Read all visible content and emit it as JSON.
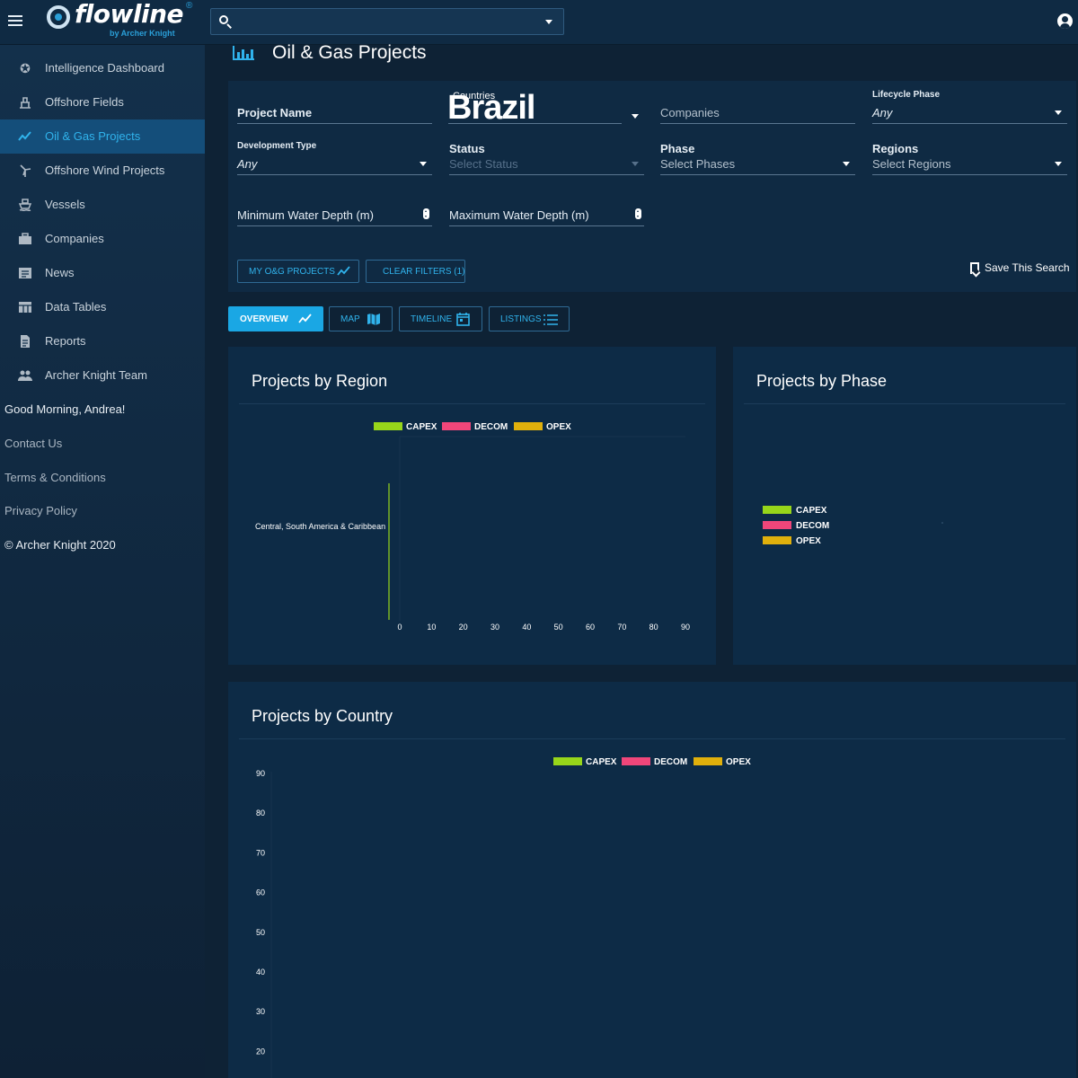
{
  "app": {
    "logo_text": "flowline",
    "logo_reg": "®",
    "logo_sub": "by Archer Knight"
  },
  "topbar": {
    "search_value": ""
  },
  "sidebar": {
    "items": [
      {
        "label": "Intelligence Dashboard",
        "icon": "star-badge-icon"
      },
      {
        "label": "Offshore Fields",
        "icon": "oil-rig-icon"
      },
      {
        "label": "Oil & Gas Projects",
        "icon": "trending-icon"
      },
      {
        "label": "Offshore Wind Projects",
        "icon": "wind-turbine-icon"
      },
      {
        "label": "Vessels",
        "icon": "ship-icon"
      },
      {
        "label": "Companies",
        "icon": "briefcase-icon"
      },
      {
        "label": "News",
        "icon": "news-icon"
      },
      {
        "label": "Data Tables",
        "icon": "table-icon"
      },
      {
        "label": "Reports",
        "icon": "report-icon"
      },
      {
        "label": "Archer Knight Team",
        "icon": "team-icon"
      }
    ],
    "greeting": "Good Morning, Andrea!",
    "contact": "Contact Us",
    "terms": "Terms & Conditions",
    "privacy": "Privacy Policy",
    "copyright": "© Archer Knight 2020"
  },
  "page": {
    "title": "Oil & Gas Projects"
  },
  "filters": {
    "project_name_label": "Project Name",
    "countries_label": "Countries",
    "countries_value": "Brazil",
    "companies_label": "Companies",
    "lifecycle_label": "Lifecycle Phase",
    "lifecycle_value": "Any",
    "devtype_label": "Development Type",
    "devtype_value": "Any",
    "status_label": "Status",
    "status_placeholder": "Select Status",
    "phase_label": "Phase",
    "phase_placeholder": "Select Phases",
    "regions_label": "Regions",
    "regions_placeholder": "Select Regions",
    "min_depth_label": "Minimum Water Depth (m)",
    "max_depth_label": "Maximum Water Depth (m)",
    "my_projects_btn": "MY O&G PROJECTS",
    "clear_filters_btn": "CLEAR FILTERS (1)",
    "save_search": "Save This Search"
  },
  "tabs": [
    {
      "label": "OVERVIEW",
      "icon": "trending-icon"
    },
    {
      "label": "MAP",
      "icon": "map-icon"
    },
    {
      "label": "TIMELINE",
      "icon": "calendar-icon"
    },
    {
      "label": "LISTINGS",
      "icon": "list-icon"
    }
  ],
  "colors": {
    "capex": "#97d61a",
    "decom": "#f0467a",
    "opex": "#e0b00c",
    "accent": "#30b3ec"
  },
  "chart_data": [
    {
      "type": "bar",
      "orientation": "horizontal",
      "title": "Projects by Region",
      "categories": [
        "Central, South America & Caribbean"
      ],
      "series": [
        {
          "name": "CAPEX",
          "values": [
            0
          ]
        },
        {
          "name": "DECOM",
          "values": [
            0
          ]
        },
        {
          "name": "OPEX",
          "values": [
            0
          ]
        }
      ],
      "xticks": [
        "0",
        "10",
        "20",
        "30",
        "40",
        "50",
        "60",
        "70",
        "80",
        "90"
      ],
      "xlim": [
        0,
        90
      ],
      "legend": "top"
    },
    {
      "type": "pie",
      "title": "Projects by Phase",
      "series": [
        {
          "name": "CAPEX",
          "values": []
        },
        {
          "name": "DECOM",
          "values": []
        },
        {
          "name": "OPEX",
          "values": []
        }
      ],
      "legend": "left"
    },
    {
      "type": "bar",
      "title": "Projects by Country",
      "series": [
        {
          "name": "CAPEX",
          "values": []
        },
        {
          "name": "DECOM",
          "values": []
        },
        {
          "name": "OPEX",
          "values": []
        }
      ],
      "yticks": [
        "90",
        "80",
        "70",
        "60",
        "50",
        "40",
        "30",
        "20"
      ],
      "legend": "top"
    }
  ]
}
